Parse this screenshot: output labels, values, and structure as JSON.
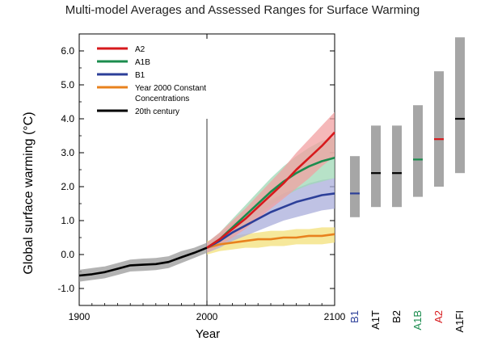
{
  "chart_data": {
    "type": "line",
    "title": "Multi-model Averages and Assessed Ranges for Surface Warming",
    "xlabel": "Year",
    "ylabel": "Global surface warming (°C)",
    "xlim": [
      1900,
      2100
    ],
    "ylim": [
      -1.5,
      6.5
    ],
    "x_ticks": [
      "1900",
      "2000",
      "2100"
    ],
    "y_ticks": [
      "-1.0",
      "0.0",
      "1.0",
      "2.0",
      "3.0",
      "4.0",
      "5.0",
      "6.0"
    ],
    "legend_position": "top-left",
    "divider_year": 2000,
    "series": [
      {
        "name": "A2",
        "color": "#d7191c",
        "band_color": "#f2a0a2",
        "x": [
          2000,
          2010,
          2020,
          2030,
          2040,
          2050,
          2060,
          2070,
          2080,
          2090,
          2100
        ],
        "values": [
          0.2,
          0.45,
          0.75,
          1.05,
          1.4,
          1.75,
          2.1,
          2.5,
          2.85,
          3.2,
          3.6
        ],
        "lower": [
          0.05,
          0.25,
          0.5,
          0.75,
          1.05,
          1.35,
          1.65,
          1.95,
          2.25,
          2.6,
          2.9
        ],
        "upper": [
          0.35,
          0.65,
          1.0,
          1.35,
          1.75,
          2.15,
          2.55,
          3.0,
          3.4,
          3.8,
          4.2
        ]
      },
      {
        "name": "A1B",
        "color": "#1b8c4e",
        "band_color": "#9fd8b6",
        "x": [
          2000,
          2010,
          2020,
          2030,
          2040,
          2050,
          2060,
          2070,
          2080,
          2090,
          2100
        ],
        "values": [
          0.2,
          0.45,
          0.8,
          1.15,
          1.5,
          1.85,
          2.15,
          2.4,
          2.6,
          2.75,
          2.85
        ],
        "lower": [
          0.05,
          0.25,
          0.55,
          0.85,
          1.15,
          1.45,
          1.7,
          1.9,
          2.05,
          2.15,
          2.25
        ],
        "upper": [
          0.35,
          0.65,
          1.05,
          1.45,
          1.85,
          2.25,
          2.6,
          2.9,
          3.15,
          3.35,
          3.45
        ]
      },
      {
        "name": "B1",
        "color": "#2c3f99",
        "band_color": "#a9addb",
        "x": [
          2000,
          2010,
          2020,
          2030,
          2040,
          2050,
          2060,
          2070,
          2080,
          2090,
          2100
        ],
        "values": [
          0.2,
          0.4,
          0.65,
          0.85,
          1.05,
          1.25,
          1.4,
          1.55,
          1.65,
          1.75,
          1.8
        ],
        "lower": [
          0.05,
          0.2,
          0.4,
          0.55,
          0.7,
          0.85,
          1.0,
          1.1,
          1.2,
          1.3,
          1.35
        ],
        "upper": [
          0.35,
          0.6,
          0.9,
          1.15,
          1.4,
          1.6,
          1.8,
          1.95,
          2.1,
          2.2,
          2.25
        ]
      },
      {
        "name": "Year 2000 Constant Concentrations",
        "legend_lines": [
          "Year 2000 Constant",
          "Concentrations"
        ],
        "color": "#e8821e",
        "band_color": "#f3e07a",
        "x": [
          2000,
          2010,
          2020,
          2030,
          2040,
          2050,
          2060,
          2070,
          2080,
          2090,
          2100
        ],
        "values": [
          0.2,
          0.3,
          0.35,
          0.4,
          0.45,
          0.45,
          0.5,
          0.5,
          0.55,
          0.55,
          0.6
        ],
        "lower": [
          0.0,
          0.1,
          0.15,
          0.2,
          0.2,
          0.25,
          0.25,
          0.3,
          0.3,
          0.3,
          0.35
        ],
        "upper": [
          0.4,
          0.5,
          0.55,
          0.6,
          0.65,
          0.7,
          0.7,
          0.75,
          0.75,
          0.8,
          0.8
        ]
      },
      {
        "name": "20th century",
        "color": "#000000",
        "band_color": "#9a9a9a",
        "x": [
          1900,
          1910,
          1920,
          1930,
          1940,
          1950,
          1960,
          1970,
          1980,
          1990,
          2000
        ],
        "values": [
          -0.62,
          -0.58,
          -0.52,
          -0.42,
          -0.32,
          -0.3,
          -0.28,
          -0.22,
          -0.08,
          0.05,
          0.2
        ],
        "lower": [
          -0.8,
          -0.75,
          -0.7,
          -0.6,
          -0.5,
          -0.48,
          -0.46,
          -0.4,
          -0.25,
          -0.1,
          0.05
        ],
        "upper": [
          -0.45,
          -0.4,
          -0.35,
          -0.25,
          -0.15,
          -0.12,
          -0.1,
          -0.05,
          0.1,
          0.2,
          0.35
        ]
      }
    ],
    "assessed_ranges": [
      {
        "name": "B1",
        "low": 1.1,
        "high": 2.9,
        "best": 1.8,
        "color": "#2c3f99"
      },
      {
        "name": "A1T",
        "low": 1.4,
        "high": 3.8,
        "best": 2.4,
        "color": "#000000"
      },
      {
        "name": "B2",
        "low": 1.4,
        "high": 3.8,
        "best": 2.4,
        "color": "#000000"
      },
      {
        "name": "A1B",
        "low": 1.7,
        "high": 4.4,
        "best": 2.8,
        "color": "#1b8c4e"
      },
      {
        "name": "A2",
        "low": 2.0,
        "high": 5.4,
        "best": 3.4,
        "color": "#d7191c"
      },
      {
        "name": "A1FI",
        "low": 2.4,
        "high": 6.4,
        "best": 4.0,
        "color": "#000000"
      }
    ]
  }
}
